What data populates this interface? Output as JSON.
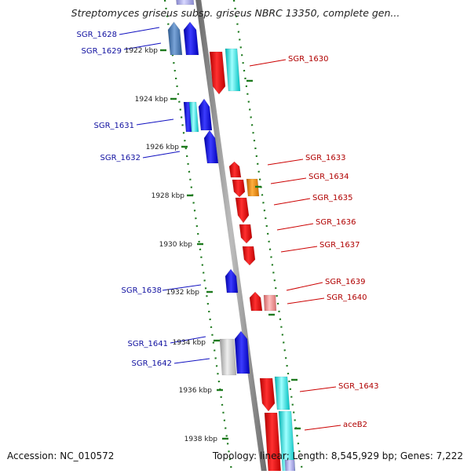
{
  "title": "Streptomyces griseus subsp. griseus NBRC 13350, complete gen...",
  "accession_label": "Accession: NC_010572",
  "topology_label": "Topology: linear; Length: 8,545,929 bp; Genes: 7,222",
  "colors": {
    "backbone": "#8c8c8c",
    "tick": "#1e7a1e",
    "kbp_label": "#222222",
    "left_label": "#1010a0",
    "right_label": "#b00000",
    "leader_left": "#1010c0",
    "leader_right": "#cc0000"
  },
  "kbp_ticks": [
    "1922 kbp",
    "1924 kbp",
    "1926 kbp",
    "1928 kbp",
    "1930 kbp",
    "1932 kbp",
    "1934 kbp",
    "1936 kbp",
    "1938 kbp"
  ],
  "left_genes": [
    "SGR_1628",
    "SGR_1629",
    "SGR_1631",
    "SGR_1632",
    "SGR_1638",
    "SGR_1641",
    "SGR_1642"
  ],
  "right_genes": [
    "SGR_1630",
    "SGR_1633",
    "SGR_1634",
    "SGR_1635",
    "SGR_1636",
    "SGR_1637",
    "SGR_1639",
    "SGR_1640",
    "SGR_1643",
    "aceB2"
  ]
}
